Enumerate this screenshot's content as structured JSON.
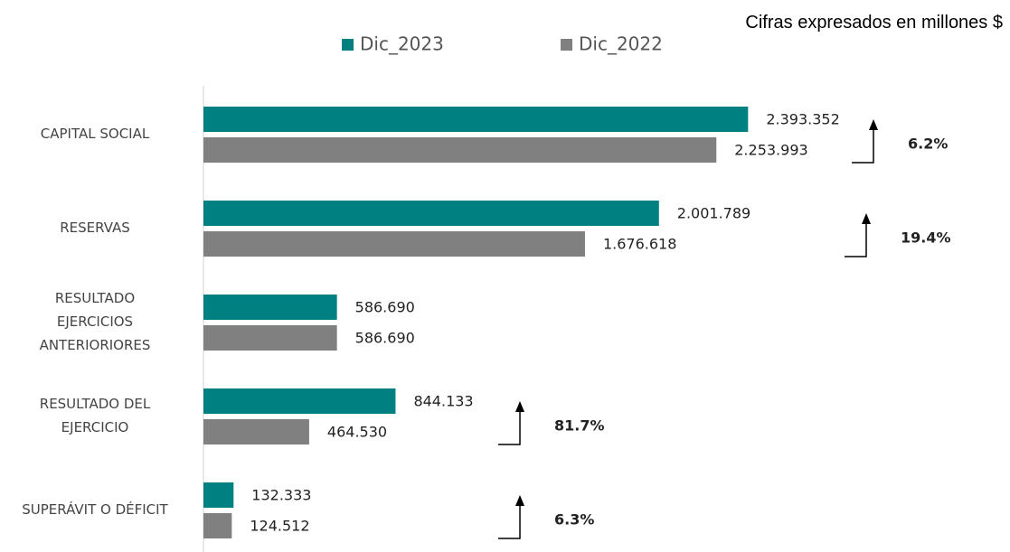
{
  "chart_data": {
    "type": "bar",
    "orientation": "horizontal",
    "subtitle": "Cifras expresados en millones $",
    "categories": [
      "CAPITAL SOCIAL",
      "RESERVAS",
      "RESULTADO\nEJERCICIOS\nANTERIORIORES",
      "RESULTADO DEL\nEJERCICIO",
      "SUPERÁVIT O DÉFICIT"
    ],
    "series": [
      {
        "name": "Dic_2023",
        "color": "#008080",
        "values": [
          2393352,
          2001789,
          586690,
          844133,
          132333
        ],
        "value_labels": [
          "2.393.352",
          "2.001.789",
          "586.690",
          "844.133",
          "132.333"
        ]
      },
      {
        "name": "Dic_2022",
        "color": "#808080",
        "values": [
          2253993,
          1676618,
          586690,
          464530,
          124512
        ],
        "value_labels": [
          "2.253.993",
          "1.676.618",
          "586.690",
          "464.530",
          "124.512"
        ]
      }
    ],
    "annotations": [
      "6.2%",
      "19.4%",
      null,
      "81.7%",
      "6.3%"
    ],
    "xlim": [
      0,
      3000000
    ],
    "grid": false,
    "legend": "top"
  }
}
